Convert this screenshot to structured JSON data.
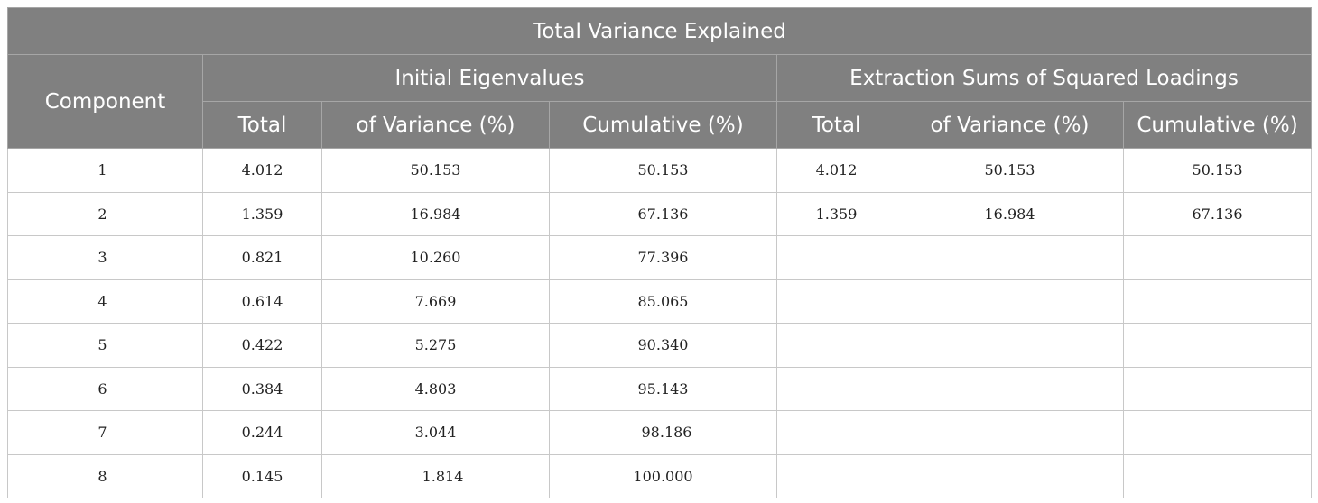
{
  "table": {
    "title": "Total Variance Explained",
    "component_header": "Component",
    "group_headers": [
      "Initial Eigenvalues",
      "Extraction Sums of Squared Loadings"
    ],
    "sub_headers": [
      "Total",
      "of Variance (%)",
      "Cumulative (%)",
      "Total",
      "of Variance (%)",
      "Cumulative (%)"
    ],
    "rows": [
      [
        "1",
        "4.012",
        "50.153",
        "50.153",
        "4.012",
        "50.153",
        "50.153"
      ],
      [
        "2",
        "1.359",
        "16.984",
        "67.136",
        "1.359",
        "16.984",
        "67.136"
      ],
      [
        "3",
        "0.821",
        "10.260",
        "77.396",
        "",
        "",
        ""
      ],
      [
        "4",
        "0.614",
        "7.669",
        "85.065",
        "",
        "",
        ""
      ],
      [
        "5",
        "0.422",
        "5.275",
        "90.340",
        "",
        "",
        ""
      ],
      [
        "6",
        "0.384",
        "4.803",
        "95.143",
        "",
        "",
        ""
      ],
      [
        "7",
        "0.244",
        "3.044",
        "98.186",
        "",
        "",
        ""
      ],
      [
        "8",
        "0.145",
        "1.814",
        "100.000",
        "",
        "",
        ""
      ]
    ]
  },
  "colors": {
    "header_bg": "#808080",
    "header_text": "#ffffff",
    "grid_line": "#c8c8c8"
  }
}
